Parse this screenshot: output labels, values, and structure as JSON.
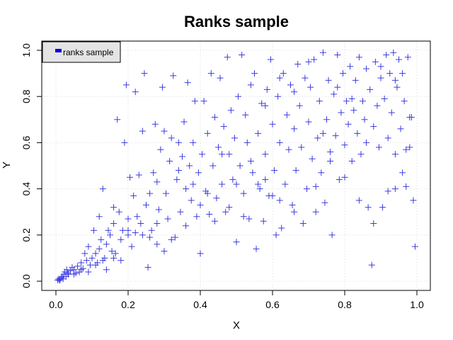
{
  "chart_data": {
    "type": "scatter",
    "title": "Ranks sample",
    "xlabel": "X",
    "ylabel": "Y",
    "xlim": [
      0,
      1
    ],
    "ylim": [
      0,
      1
    ],
    "xticks": [
      0.0,
      0.2,
      0.4,
      0.6,
      0.8,
      1.0
    ],
    "yticks": [
      0.0,
      0.2,
      0.4,
      0.6,
      0.8,
      1.0
    ],
    "xtick_labels": [
      "0.0",
      "0.2",
      "0.4",
      "0.6",
      "0.8",
      "1.0"
    ],
    "ytick_labels": [
      "0.0",
      "0.2",
      "0.4",
      "0.6",
      "0.8",
      "1.0"
    ],
    "grid": true,
    "legend_position": "top-left",
    "marker": "plus",
    "color": "#3a3ae0",
    "series": [
      {
        "name": "ranks sample",
        "points": [
          [
            0.005,
            0.005
          ],
          [
            0.008,
            0.01
          ],
          [
            0.01,
            0.003
          ],
          [
            0.012,
            0.008
          ],
          [
            0.015,
            0.015
          ],
          [
            0.018,
            0.02
          ],
          [
            0.02,
            0.01
          ],
          [
            0.022,
            0.03
          ],
          [
            0.025,
            0.04
          ],
          [
            0.028,
            0.02
          ],
          [
            0.03,
            0.05
          ],
          [
            0.033,
            0.035
          ],
          [
            0.035,
            0.03
          ],
          [
            0.04,
            0.045
          ],
          [
            0.045,
            0.06
          ],
          [
            0.05,
            0.05
          ],
          [
            0.055,
            0.035
          ],
          [
            0.06,
            0.065
          ],
          [
            0.065,
            0.04
          ],
          [
            0.07,
            0.08
          ],
          [
            0.075,
            0.055
          ],
          [
            0.08,
            0.12
          ],
          [
            0.085,
            0.09
          ],
          [
            0.09,
            0.15
          ],
          [
            0.095,
            0.07
          ],
          [
            0.1,
            0.1
          ],
          [
            0.105,
            0.22
          ],
          [
            0.11,
            0.12
          ],
          [
            0.115,
            0.08
          ],
          [
            0.12,
            0.14
          ],
          [
            0.125,
            0.18
          ],
          [
            0.13,
            0.4
          ],
          [
            0.135,
            0.1
          ],
          [
            0.14,
            0.16
          ],
          [
            0.145,
            0.22
          ],
          [
            0.15,
            0.2
          ],
          [
            0.155,
            0.13
          ],
          [
            0.16,
            0.25
          ],
          [
            0.165,
            0.12
          ],
          [
            0.17,
            0.7
          ],
          [
            0.175,
            0.3
          ],
          [
            0.18,
            0.09
          ],
          [
            0.185,
            0.22
          ],
          [
            0.19,
            0.6
          ],
          [
            0.195,
            0.85
          ],
          [
            0.2,
            0.2
          ],
          [
            0.205,
            0.45
          ],
          [
            0.21,
            0.15
          ],
          [
            0.215,
            0.37
          ],
          [
            0.22,
            0.82
          ],
          [
            0.225,
            0.28
          ],
          [
            0.23,
            0.46
          ],
          [
            0.235,
            0.25
          ],
          [
            0.24,
            0.65
          ],
          [
            0.245,
            0.9
          ],
          [
            0.25,
            0.33
          ],
          [
            0.255,
            0.06
          ],
          [
            0.26,
            0.38
          ],
          [
            0.265,
            0.22
          ],
          [
            0.27,
            0.47
          ],
          [
            0.275,
            0.68
          ],
          [
            0.28,
            0.43
          ],
          [
            0.285,
            0.31
          ],
          [
            0.29,
            0.57
          ],
          [
            0.295,
            0.84
          ],
          [
            0.3,
            0.13
          ],
          [
            0.305,
            0.38
          ],
          [
            0.31,
            0.27
          ],
          [
            0.315,
            0.52
          ],
          [
            0.32,
            0.62
          ],
          [
            0.325,
            0.89
          ],
          [
            0.33,
            0.19
          ],
          [
            0.335,
            0.44
          ],
          [
            0.34,
            0.6
          ],
          [
            0.345,
            0.3
          ],
          [
            0.35,
            0.54
          ],
          [
            0.355,
            0.69
          ],
          [
            0.36,
            0.4
          ],
          [
            0.365,
            0.86
          ],
          [
            0.37,
            0.5
          ],
          [
            0.375,
            0.35
          ],
          [
            0.38,
            0.6
          ],
          [
            0.385,
            0.78
          ],
          [
            0.39,
            0.28
          ],
          [
            0.395,
            0.47
          ],
          [
            0.4,
            0.12
          ],
          [
            0.405,
            0.55
          ],
          [
            0.41,
            0.78
          ],
          [
            0.415,
            0.39
          ],
          [
            0.42,
            0.64
          ],
          [
            0.425,
            0.29
          ],
          [
            0.43,
            0.9
          ],
          [
            0.435,
            0.5
          ],
          [
            0.44,
            0.71
          ],
          [
            0.445,
            0.36
          ],
          [
            0.45,
            0.58
          ],
          [
            0.455,
            0.88
          ],
          [
            0.46,
            0.42
          ],
          [
            0.465,
            0.67
          ],
          [
            0.47,
            0.3
          ],
          [
            0.475,
            0.97
          ],
          [
            0.48,
            0.55
          ],
          [
            0.485,
            0.74
          ],
          [
            0.49,
            0.44
          ],
          [
            0.495,
            0.62
          ],
          [
            0.5,
            0.17
          ],
          [
            0.505,
            0.8
          ],
          [
            0.51,
            0.5
          ],
          [
            0.515,
            0.98
          ],
          [
            0.52,
            0.38
          ],
          [
            0.525,
            0.72
          ],
          [
            0.53,
            0.6
          ],
          [
            0.535,
            0.27
          ],
          [
            0.54,
            0.85
          ],
          [
            0.545,
            0.47
          ],
          [
            0.55,
            0.9
          ],
          [
            0.555,
            0.14
          ],
          [
            0.56,
            0.64
          ],
          [
            0.565,
            0.4
          ],
          [
            0.57,
            0.77
          ],
          [
            0.575,
            0.26
          ],
          [
            0.58,
            0.55
          ],
          [
            0.585,
            0.83
          ],
          [
            0.59,
            0.37
          ],
          [
            0.595,
            0.96
          ],
          [
            0.6,
            0.68
          ],
          [
            0.605,
            0.48
          ],
          [
            0.61,
            0.2
          ],
          [
            0.615,
            0.8
          ],
          [
            0.62,
            0.6
          ],
          [
            0.625,
            0.23
          ],
          [
            0.63,
            0.9
          ],
          [
            0.635,
            0.42
          ],
          [
            0.64,
            0.72
          ],
          [
            0.645,
            0.57
          ],
          [
            0.65,
            0.85
          ],
          [
            0.655,
            0.33
          ],
          [
            0.66,
            0.66
          ],
          [
            0.665,
            0.48
          ],
          [
            0.67,
            0.94
          ],
          [
            0.675,
            0.76
          ],
          [
            0.68,
            0.58
          ],
          [
            0.685,
            0.25
          ],
          [
            0.69,
            0.88
          ],
          [
            0.695,
            0.4
          ],
          [
            0.7,
            0.69
          ],
          [
            0.705,
            0.84
          ],
          [
            0.71,
            0.53
          ],
          [
            0.715,
            0.96
          ],
          [
            0.72,
            0.3
          ],
          [
            0.725,
            0.62
          ],
          [
            0.73,
            0.78
          ],
          [
            0.735,
            0.47
          ],
          [
            0.74,
            0.99
          ],
          [
            0.745,
            0.34
          ],
          [
            0.75,
            0.7
          ],
          [
            0.755,
            0.87
          ],
          [
            0.76,
            0.56
          ],
          [
            0.765,
            0.2
          ],
          [
            0.77,
            0.81
          ],
          [
            0.775,
            0.63
          ],
          [
            0.78,
            0.98
          ],
          [
            0.785,
            0.44
          ],
          [
            0.79,
            0.73
          ],
          [
            0.795,
            0.9
          ],
          [
            0.8,
            0.59
          ],
          [
            0.805,
            0.78
          ],
          [
            0.81,
            0.68
          ],
          [
            0.815,
            0.93
          ],
          [
            0.82,
            0.52
          ],
          [
            0.825,
            0.74
          ],
          [
            0.83,
            0.87
          ],
          [
            0.835,
            0.64
          ],
          [
            0.84,
            0.97
          ],
          [
            0.845,
            0.55
          ],
          [
            0.85,
            0.78
          ],
          [
            0.855,
            0.7
          ],
          [
            0.86,
            0.92
          ],
          [
            0.865,
            0.32
          ],
          [
            0.87,
            0.83
          ],
          [
            0.875,
            0.07
          ],
          [
            0.88,
            0.67
          ],
          [
            0.885,
            0.95
          ],
          [
            0.89,
            0.76
          ],
          [
            0.895,
            0.58
          ],
          [
            0.9,
            0.88
          ],
          [
            0.905,
            0.32
          ],
          [
            0.91,
            0.79
          ],
          [
            0.915,
            0.98
          ],
          [
            0.92,
            0.62
          ],
          [
            0.925,
            0.9
          ],
          [
            0.93,
            0.73
          ],
          [
            0.935,
            0.99
          ],
          [
            0.94,
            0.55
          ],
          [
            0.945,
            0.84
          ],
          [
            0.95,
            0.96
          ],
          [
            0.955,
            0.66
          ],
          [
            0.96,
            0.9
          ],
          [
            0.965,
            0.78
          ],
          [
            0.97,
            0.41
          ],
          [
            0.975,
            0.97
          ],
          [
            0.98,
            0.58
          ],
          [
            0.985,
            0.71
          ],
          [
            0.99,
            0.35
          ],
          [
            0.995,
            0.15
          ],
          [
            0.58,
            0.76
          ],
          [
            0.62,
            0.88
          ],
          [
            0.66,
            0.82
          ],
          [
            0.7,
            0.95
          ],
          [
            0.74,
            0.64
          ],
          [
            0.78,
            0.84
          ],
          [
            0.82,
            0.79
          ],
          [
            0.86,
            0.6
          ],
          [
            0.9,
            0.93
          ],
          [
            0.94,
            0.87
          ],
          [
            0.3,
            0.65
          ],
          [
            0.34,
            0.48
          ],
          [
            0.38,
            0.42
          ],
          [
            0.42,
            0.38
          ],
          [
            0.46,
            0.55
          ],
          [
            0.5,
            0.42
          ],
          [
            0.54,
            0.52
          ],
          [
            0.58,
            0.44
          ],
          [
            0.62,
            0.35
          ],
          [
            0.66,
            0.3
          ],
          [
            0.26,
            0.19
          ],
          [
            0.28,
            0.25
          ],
          [
            0.32,
            0.18
          ],
          [
            0.36,
            0.24
          ],
          [
            0.4,
            0.33
          ],
          [
            0.44,
            0.26
          ],
          [
            0.48,
            0.32
          ],
          [
            0.52,
            0.28
          ],
          [
            0.56,
            0.42
          ],
          [
            0.6,
            0.37
          ],
          [
            0.12,
            0.28
          ],
          [
            0.16,
            0.32
          ],
          [
            0.2,
            0.27
          ],
          [
            0.24,
            0.2
          ],
          [
            0.28,
            0.16
          ],
          [
            0.14,
            0.05
          ],
          [
            0.16,
            0.1
          ],
          [
            0.18,
            0.18
          ],
          [
            0.2,
            0.22
          ],
          [
            0.22,
            0.21
          ],
          [
            0.05,
            0.03
          ],
          [
            0.07,
            0.05
          ],
          [
            0.09,
            0.04
          ],
          [
            0.11,
            0.07
          ],
          [
            0.13,
            0.09
          ],
          [
            0.94,
            0.4
          ],
          [
            0.96,
            0.47
          ],
          [
            0.98,
            0.71
          ],
          [
            0.97,
            0.57
          ],
          [
            0.92,
            0.39
          ],
          [
            0.88,
            0.25
          ],
          [
            0.84,
            0.35
          ],
          [
            0.8,
            0.45
          ],
          [
            0.76,
            0.52
          ],
          [
            0.72,
            0.41
          ]
        ]
      }
    ]
  }
}
